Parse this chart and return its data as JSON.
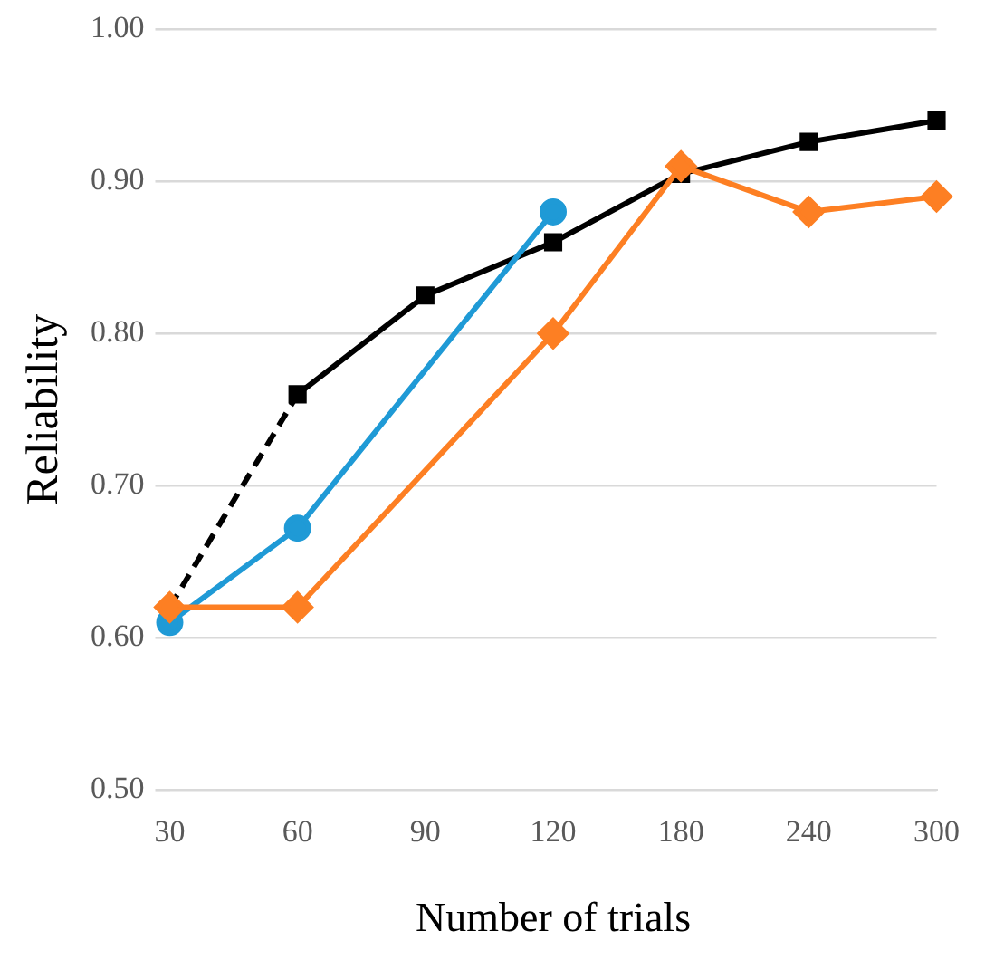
{
  "chart_data": {
    "type": "line",
    "xlabel": "Number of trials",
    "ylabel": "Reliability",
    "categories": [
      "30",
      "60",
      "90",
      "120",
      "180",
      "240",
      "300"
    ],
    "series": [
      {
        "color": "#000000",
        "marker": "square",
        "line_style": "solid",
        "values": [
          null,
          0.76,
          0.825,
          0.86,
          0.905,
          0.926,
          0.94
        ]
      },
      {
        "color": "#000000",
        "line_style": "dashed",
        "values": [
          0.62,
          0.76,
          null,
          null,
          null,
          null,
          null
        ]
      },
      {
        "color": "#1f9ad6",
        "marker": "circle",
        "line_style": "solid",
        "values": [
          0.61,
          0.672,
          null,
          0.88,
          null,
          null,
          null
        ]
      },
      {
        "color": "#fd7f23",
        "marker": "diamond",
        "line_style": "solid",
        "values": [
          0.62,
          0.62,
          null,
          0.8,
          0.91,
          0.88,
          0.89
        ]
      }
    ],
    "ylim": [
      0.5,
      1.0
    ],
    "yticks": [
      {
        "value": 0.5,
        "label": "0.50"
      },
      {
        "value": 0.6,
        "label": "0.60"
      },
      {
        "value": 0.7,
        "label": "0.70"
      },
      {
        "value": 0.8,
        "label": "0.80"
      },
      {
        "value": 0.9,
        "label": "0.90"
      },
      {
        "value": 1.0,
        "label": "1.00"
      }
    ],
    "grid": "y",
    "legend": false
  }
}
